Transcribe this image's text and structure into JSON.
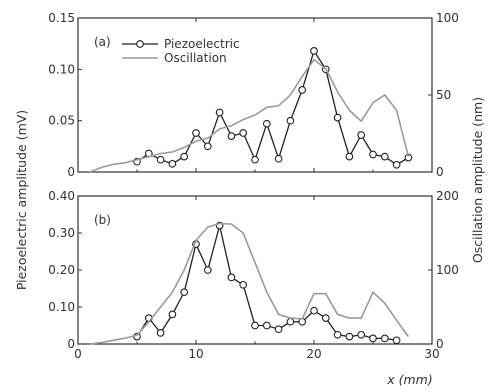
{
  "chart_data": [
    {
      "type": "line",
      "panel_label": "(a)",
      "xlim": [
        0,
        30
      ],
      "x_ticks": [
        0,
        10,
        20,
        30
      ],
      "show_x_tick_labels": false,
      "ylim_left": [
        0,
        0.15
      ],
      "y_ticks_left": [
        "0",
        "0.05",
        "0.10",
        "0.15"
      ],
      "ylim_right": [
        0,
        100
      ],
      "y_ticks_right": [
        "0",
        "50",
        "100"
      ],
      "legend": {
        "position": "top-left",
        "entries": [
          "Piezoelectric",
          "Oscillation"
        ]
      },
      "series": [
        {
          "name": "Piezoelectric",
          "axis": "left",
          "marker": "circle",
          "color": "#222222",
          "x": [
            5,
            6,
            7,
            8,
            9,
            10,
            11,
            12,
            13,
            14,
            15,
            16,
            17,
            18,
            19,
            20,
            21,
            22,
            23,
            24,
            25,
            26,
            27,
            28
          ],
          "y": [
            0.01,
            0.018,
            0.012,
            0.008,
            0.015,
            0.038,
            0.025,
            0.058,
            0.035,
            0.038,
            0.012,
            0.047,
            0.013,
            0.05,
            0.08,
            0.118,
            0.1,
            0.053,
            0.015,
            0.036,
            0.017,
            0.015,
            0.007,
            0.014
          ]
        },
        {
          "name": "Oscillation",
          "axis": "right",
          "color": "#9a9a9a",
          "x": [
            1,
            2,
            3,
            4,
            5,
            6,
            7,
            8,
            9,
            10,
            11,
            12,
            13,
            14,
            15,
            16,
            17,
            18,
            19,
            20,
            21,
            22,
            23,
            24,
            25,
            26,
            27,
            28
          ],
          "y": [
            0,
            3,
            5,
            6,
            8,
            10,
            12,
            13,
            16,
            20,
            22,
            28,
            30,
            34,
            37,
            42,
            43,
            50,
            62,
            73,
            67,
            52,
            40,
            33,
            45,
            50,
            40,
            10
          ]
        }
      ]
    },
    {
      "type": "line",
      "panel_label": "(b)",
      "xlim": [
        0,
        30
      ],
      "x_ticks": [
        "0",
        "10",
        "20",
        "30"
      ],
      "xlabel": "x (mm)",
      "ylim_left": [
        0,
        0.4
      ],
      "y_ticks_left": [
        "0",
        "0.10",
        "0.20",
        "0.30",
        "0.40"
      ],
      "ylim_right": [
        0,
        200
      ],
      "y_ticks_right": [
        "0",
        "100",
        "200"
      ],
      "series": [
        {
          "name": "Piezoelectric",
          "axis": "left",
          "marker": "circle",
          "color": "#222222",
          "x": [
            5,
            6,
            7,
            8,
            9,
            10,
            11,
            12,
            13,
            14,
            15,
            16,
            17,
            18,
            19,
            20,
            21,
            22,
            23,
            24,
            25,
            26,
            27
          ],
          "y": [
            0.02,
            0.07,
            0.03,
            0.08,
            0.14,
            0.27,
            0.2,
            0.32,
            0.18,
            0.16,
            0.05,
            0.05,
            0.04,
            0.06,
            0.06,
            0.09,
            0.07,
            0.025,
            0.02,
            0.025,
            0.015,
            0.015,
            0.01
          ]
        },
        {
          "name": "Oscillation",
          "axis": "right",
          "color": "#9a9a9a",
          "x": [
            1,
            2,
            3,
            4,
            5,
            6,
            7,
            8,
            9,
            10,
            11,
            12,
            13,
            14,
            15,
            16,
            17,
            18,
            19,
            20,
            21,
            22,
            23,
            24,
            25,
            26,
            27,
            28
          ],
          "y": [
            0,
            2,
            5,
            8,
            12,
            30,
            50,
            70,
            100,
            140,
            158,
            163,
            162,
            150,
            110,
            70,
            40,
            35,
            34,
            68,
            68,
            40,
            35,
            35,
            70,
            55,
            32,
            10
          ]
        }
      ]
    }
  ],
  "axis_titles": {
    "left": "Piezoelectric amplitude (mV)",
    "right": "Oscillation amplitude (nm)",
    "bottom": "x (mm)"
  }
}
